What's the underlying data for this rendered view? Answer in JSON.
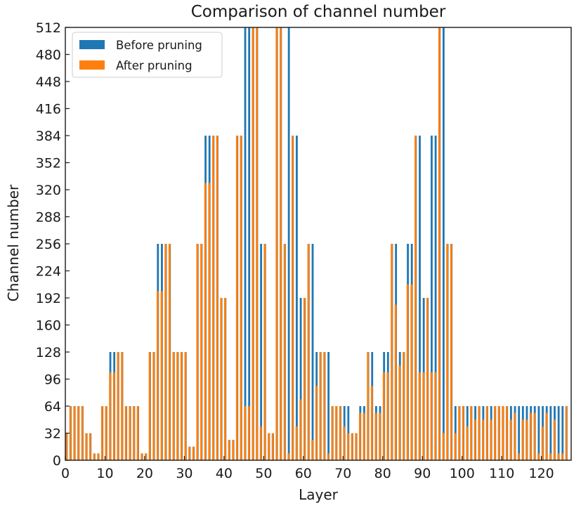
{
  "chart_data": {
    "type": "bar",
    "title": "Comparison of channel number",
    "xlabel": "Layer",
    "ylabel": "Channel number",
    "xlim": [
      0,
      127.5
    ],
    "ylim": [
      0,
      512
    ],
    "xticks": [
      0,
      10,
      20,
      30,
      40,
      50,
      60,
      70,
      80,
      90,
      100,
      110,
      120
    ],
    "yticks": [
      0,
      32,
      64,
      96,
      128,
      160,
      192,
      224,
      256,
      288,
      320,
      352,
      384,
      416,
      448,
      480,
      512
    ],
    "legend_position": "top-left",
    "grid": false,
    "layers": [
      0,
      1,
      2,
      3,
      4,
      5,
      6,
      7,
      8,
      9,
      10,
      11,
      12,
      13,
      14,
      15,
      16,
      17,
      18,
      19,
      20,
      21,
      22,
      23,
      24,
      25,
      26,
      27,
      28,
      29,
      30,
      31,
      32,
      33,
      34,
      35,
      36,
      37,
      38,
      39,
      40,
      41,
      42,
      43,
      44,
      45,
      46,
      47,
      48,
      49,
      50,
      51,
      52,
      53,
      54,
      55,
      56,
      57,
      58,
      59,
      60,
      61,
      62,
      63,
      64,
      65,
      66,
      67,
      68,
      69,
      70,
      71,
      72,
      73,
      74,
      75,
      76,
      77,
      78,
      79,
      80,
      81,
      82,
      83,
      84,
      85,
      86,
      87,
      88,
      89,
      90,
      91,
      92,
      93,
      94,
      95,
      96,
      97,
      98,
      99,
      100,
      101,
      102,
      103,
      104,
      105,
      106,
      107,
      108,
      109,
      110,
      111,
      112,
      113,
      114,
      115,
      116,
      117,
      118,
      119,
      120,
      121,
      122,
      123,
      124,
      125,
      126
    ],
    "series": [
      {
        "name": "Before pruning",
        "color": "#1f77b4",
        "values": [
          32,
          64,
          64,
          64,
          64,
          32,
          32,
          8,
          8,
          64,
          64,
          128,
          128,
          128,
          128,
          64,
          64,
          64,
          64,
          8,
          8,
          128,
          128,
          256,
          256,
          256,
          256,
          128,
          128,
          128,
          128,
          16,
          16,
          256,
          256,
          384,
          384,
          384,
          384,
          192,
          192,
          24,
          24,
          384,
          384,
          512,
          512,
          512,
          512,
          256,
          256,
          32,
          32,
          512,
          512,
          256,
          512,
          384,
          384,
          192,
          192,
          256,
          256,
          128,
          128,
          128,
          128,
          64,
          64,
          64,
          64,
          64,
          32,
          32,
          64,
          64,
          128,
          128,
          64,
          64,
          128,
          128,
          256,
          256,
          128,
          128,
          256,
          256,
          384,
          384,
          192,
          192,
          384,
          384,
          512,
          512,
          256,
          256,
          64,
          64,
          64,
          64,
          64,
          64,
          64,
          64,
          64,
          64,
          64,
          64,
          64,
          64,
          64,
          64,
          64,
          64,
          64,
          64,
          64,
          64,
          64,
          64,
          64,
          64,
          64,
          64,
          64
        ]
      },
      {
        "name": "After pruning",
        "color": "#ff7f0e",
        "values": [
          32,
          64,
          64,
          64,
          64,
          32,
          32,
          8,
          8,
          64,
          64,
          104,
          104,
          128,
          128,
          64,
          64,
          64,
          64,
          8,
          8,
          128,
          128,
          200,
          200,
          256,
          256,
          128,
          128,
          128,
          128,
          16,
          16,
          256,
          256,
          328,
          328,
          384,
          384,
          192,
          192,
          24,
          24,
          384,
          384,
          64,
          64,
          512,
          512,
          40,
          256,
          32,
          32,
          512,
          512,
          256,
          8,
          384,
          40,
          72,
          192,
          256,
          24,
          88,
          128,
          128,
          8,
          64,
          64,
          64,
          40,
          32,
          32,
          32,
          56,
          56,
          128,
          88,
          56,
          56,
          104,
          104,
          256,
          184,
          112,
          128,
          208,
          208,
          384,
          104,
          104,
          192,
          104,
          104,
          512,
          32,
          256,
          256,
          32,
          64,
          64,
          40,
          64,
          48,
          64,
          48,
          64,
          48,
          64,
          64,
          64,
          64,
          48,
          56,
          8,
          48,
          48,
          56,
          56,
          8,
          40,
          56,
          8,
          48,
          8,
          8,
          64
        ]
      }
    ]
  }
}
